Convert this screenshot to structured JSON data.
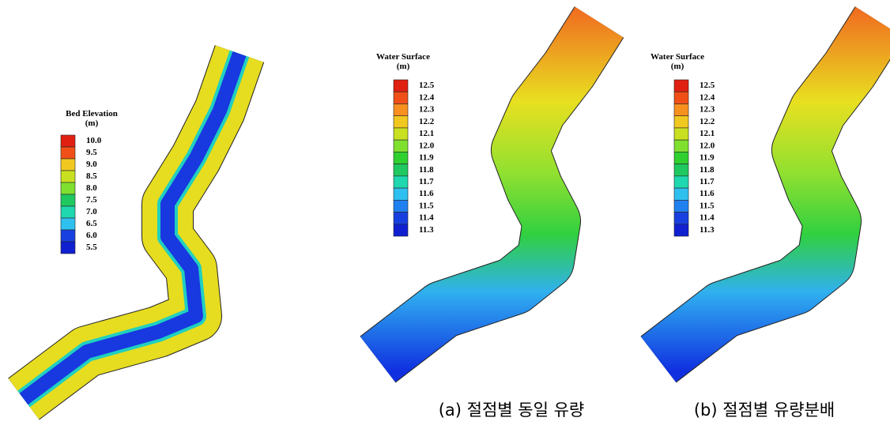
{
  "panels": [
    {
      "legend": {
        "title": "Bed Elevation",
        "unit": "(m)",
        "labels": [
          "10.0",
          "9.5",
          "9.0",
          "8.5",
          "8.0",
          "7.5",
          "7.0",
          "6.5",
          "6.0",
          "5.5"
        ]
      }
    },
    {
      "legend": {
        "title": "Water Surface",
        "unit": "(m)",
        "labels": [
          "12.5",
          "12.4",
          "12.3",
          "12.2",
          "12.1",
          "12.0",
          "11.9",
          "11.8",
          "11.7",
          "11.6",
          "11.5",
          "11.4",
          "11.3"
        ]
      },
      "caption": "(a) 절점별 동일 유량"
    },
    {
      "legend": {
        "title": "Water Surface",
        "unit": "(m)",
        "labels": [
          "12.5",
          "12.4",
          "12.3",
          "12.2",
          "12.1",
          "12.0",
          "11.9",
          "11.8",
          "11.7",
          "11.6",
          "11.5",
          "11.4",
          "11.3"
        ]
      },
      "caption": "(b) 절점별 유량분배"
    }
  ]
}
